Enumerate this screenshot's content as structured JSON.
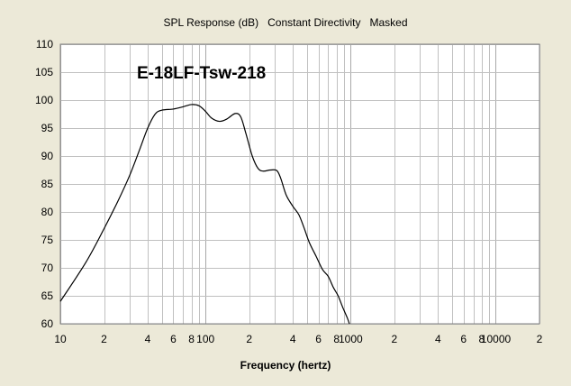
{
  "chart_data": {
    "type": "line",
    "title": "SPL Response (dB)   Constant Directivity   Masked",
    "xlabel": "Frequency (hertz)",
    "ylabel": "",
    "annotation": "E-18LF-Tsw-218",
    "xscale": "log",
    "xlim": [
      10,
      20000
    ],
    "ylim": [
      60,
      110
    ],
    "grid": true,
    "x_tick_labels": [
      {
        "value": 10,
        "label": "10"
      },
      {
        "value": 20,
        "label": "2"
      },
      {
        "value": 40,
        "label": "4"
      },
      {
        "value": 60,
        "label": "6"
      },
      {
        "value": 80,
        "label": "8"
      },
      {
        "value": 100,
        "label": "100"
      },
      {
        "value": 200,
        "label": "2"
      },
      {
        "value": 400,
        "label": "4"
      },
      {
        "value": 600,
        "label": "6"
      },
      {
        "value": 800,
        "label": "8"
      },
      {
        "value": 1000,
        "label": "1000"
      },
      {
        "value": 2000,
        "label": "2"
      },
      {
        "value": 4000,
        "label": "4"
      },
      {
        "value": 6000,
        "label": "6"
      },
      {
        "value": 8000,
        "label": "8"
      },
      {
        "value": 10000,
        "label": "10000"
      },
      {
        "value": 20000,
        "label": "2"
      }
    ],
    "y_ticks": [
      60,
      65,
      70,
      75,
      80,
      85,
      90,
      95,
      100,
      105,
      110
    ],
    "line_color": "#000000",
    "plot_background": "#ffffff",
    "grid_color": "#c0c0c0",
    "series": [
      {
        "x": [
          10,
          15,
          20,
          25,
          30,
          35,
          40,
          45,
          50,
          60,
          70,
          80,
          90,
          100,
          110,
          125,
          140,
          160,
          175,
          190,
          210,
          230,
          250,
          280,
          310,
          330,
          360,
          400,
          440,
          480,
          520,
          580,
          640,
          700,
          760,
          820,
          880,
          950,
          980
        ],
        "y": [
          64,
          71,
          77,
          82,
          86.5,
          91,
          95,
          97.5,
          98.2,
          98.4,
          98.8,
          99.2,
          99,
          98,
          96.8,
          96.2,
          96.6,
          97.6,
          97,
          94,
          90,
          87.8,
          87.3,
          87.5,
          87.4,
          86,
          83,
          81,
          79.5,
          77,
          74.5,
          72,
          69.7,
          68.5,
          66.5,
          65,
          63,
          61,
          60
        ]
      }
    ]
  }
}
